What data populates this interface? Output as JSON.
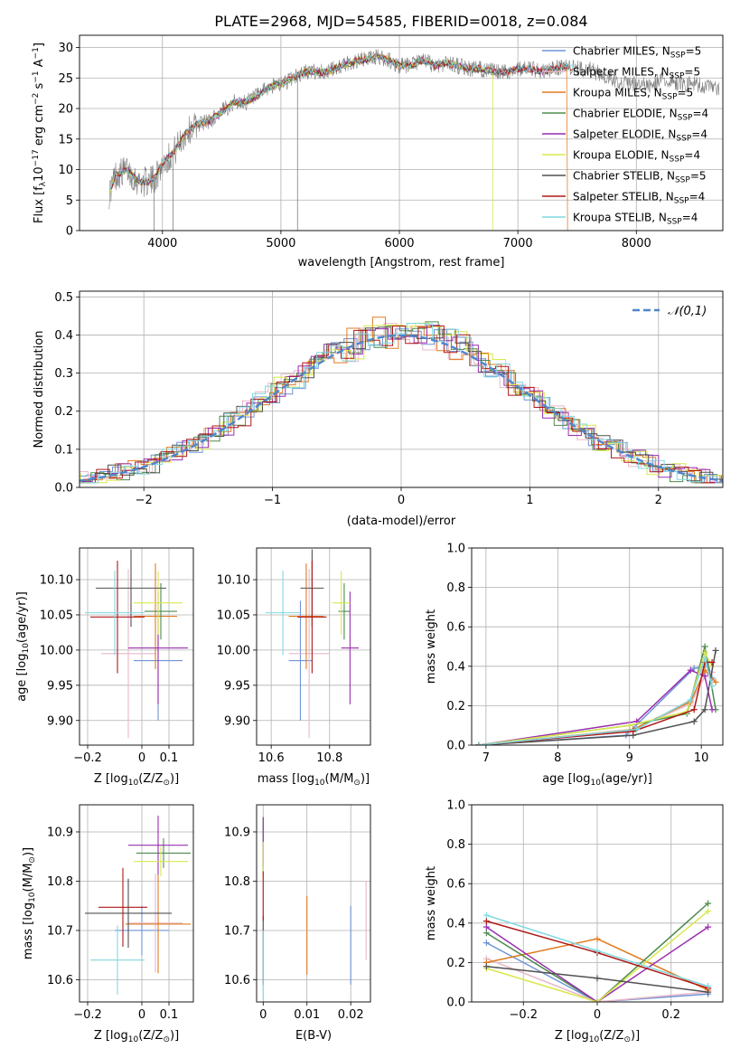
{
  "figure_title": "PLATE=2968, MJD=54585, FIBERID=0018, z=0.084",
  "legend": {
    "items": [
      {
        "base": "Chabrier MILES, N",
        "sub": "SSP",
        "tail": "=5",
        "color": "#6f94d6"
      },
      {
        "base": "Salpeter MILES, N",
        "sub": "SSP",
        "tail": "=5",
        "color": "#e8b8c8"
      },
      {
        "base": "Kroupa MILES, N",
        "sub": "SSP",
        "tail": "=5",
        "color": "#e07b20"
      },
      {
        "base": "Chabrier ELODIE, N",
        "sub": "SSP",
        "tail": "=4",
        "color": "#4e8b4e"
      },
      {
        "base": "Salpeter ELODIE, N",
        "sub": "SSP",
        "tail": "=4",
        "color": "#9a2fb0"
      },
      {
        "base": "Kroupa ELODIE, N",
        "sub": "SSP",
        "tail": "=4",
        "color": "#d9e84a"
      },
      {
        "base": "Chabrier STELIB, N",
        "sub": "SSP",
        "tail": "=5",
        "color": "#505050"
      },
      {
        "base": "Salpeter STELIB, N",
        "sub": "SSP",
        "tail": "=4",
        "color": "#b01818"
      },
      {
        "base": "Kroupa STELIB, N",
        "sub": "SSP",
        "tail": "=4",
        "color": "#80d8e0"
      }
    ]
  },
  "chart_data": [
    {
      "type": "line",
      "id": "spectrum",
      "xlabel": "wavelength [Angstrom, rest frame]",
      "ylabel_parts": [
        "Flux [f",
        "λ",
        "10",
        "−17",
        " erg cm",
        "−2",
        " s",
        "−1",
        " A",
        "−1",
        "]"
      ],
      "xlim": [
        3300,
        8730
      ],
      "ylim": [
        0,
        32
      ],
      "xticks": [
        4000,
        5000,
        6000,
        7000,
        8000
      ],
      "yticks": [
        0,
        5,
        10,
        15,
        20,
        25,
        30
      ],
      "data_color": "#808080",
      "x": [
        3550,
        3600,
        3700,
        3800,
        3900,
        3950,
        4000,
        4100,
        4200,
        4300,
        4400,
        4500,
        4600,
        4700,
        4800,
        4900,
        5000,
        5100,
        5200,
        5300,
        5400,
        5500,
        5600,
        5700,
        5800,
        5900,
        6000,
        6100,
        6200,
        6300,
        6400,
        6500,
        6600,
        6700,
        6800,
        6900,
        7000,
        7100,
        7200,
        7300,
        7400,
        7500,
        7600,
        7700,
        7800,
        7900,
        8000,
        8100,
        8200,
        8300,
        8400,
        8500,
        8600,
        8700
      ],
      "y": [
        6,
        9,
        10,
        8,
        8,
        9,
        11,
        13,
        16,
        17.5,
        18,
        19.5,
        21,
        21,
        22,
        23.5,
        24,
        25,
        26,
        26,
        26,
        27,
        27.5,
        28,
        28.5,
        28,
        27,
        27,
        28,
        27,
        27.5,
        27,
        26.5,
        26.5,
        26,
        26,
        26.5,
        26.5,
        26,
        26.5,
        27,
        26.5,
        26.5,
        25.5,
        25,
        24,
        24,
        23.5,
        24.5,
        24.5,
        24,
        24,
        23.5,
        23
      ],
      "noise": 1.4,
      "spikes": [
        {
          "x": 5140,
          "y": 0
        },
        {
          "x": 3930,
          "y": 0
        },
        {
          "x": 4090,
          "y": 0
        }
      ]
    },
    {
      "type": "bar",
      "id": "residual-hist",
      "xlabel": "(data-model)/error",
      "ylabel": "Normed distribution",
      "xlim": [
        -2.5,
        2.5
      ],
      "ylim": [
        0,
        0.515
      ],
      "xticks": [
        -2,
        -1,
        0,
        1,
        2
      ],
      "yticks": [
        0,
        0.1,
        0.2,
        0.3,
        0.4,
        0.5
      ],
      "bin_width": 0.1,
      "reference_curve": {
        "name": "𝒩(0,1)",
        "color": "#4f86cc",
        "mean": 0,
        "sigma": 1
      }
    },
    {
      "type": "scatter",
      "id": "age-vs-metallicity",
      "xlabel_parts": [
        "Z [log",
        "10",
        "(Z/Z",
        "⊙",
        ")]"
      ],
      "ylabel_parts": [
        "age  [log",
        "10",
        "(age/yr)]"
      ],
      "xlim": [
        -0.23,
        0.19
      ],
      "ylim": [
        9.865,
        10.145
      ],
      "xticks": [
        -0.2,
        0,
        0.1
      ],
      "yticks": [
        9.9,
        9.95,
        10.0,
        10.05,
        10.1
      ],
      "points": [
        {
          "x": 0.06,
          "y": 9.985,
          "xerr": 0.09,
          "yerr": 0.085
        },
        {
          "x": -0.05,
          "y": 9.995,
          "xerr": 0.1,
          "yerr": 0.12
        },
        {
          "x": 0.05,
          "y": 10.048,
          "xerr": 0.08,
          "yerr": 0.075
        },
        {
          "x": 0.07,
          "y": 10.055,
          "xerr": 0.06,
          "yerr": 0.04
        },
        {
          "x": 0.06,
          "y": 10.003,
          "xerr": 0.11,
          "yerr": 0.08
        },
        {
          "x": 0.06,
          "y": 10.067,
          "xerr": 0.09,
          "yerr": 0.045
        },
        {
          "x": -0.04,
          "y": 10.088,
          "xerr": 0.13,
          "yerr": 0.055
        },
        {
          "x": -0.09,
          "y": 10.047,
          "xerr": 0.1,
          "yerr": 0.08
        },
        {
          "x": -0.1,
          "y": 10.053,
          "xerr": 0.11,
          "yerr": 0.06
        }
      ]
    },
    {
      "type": "scatter",
      "id": "age-vs-mass",
      "xlabel_parts": [
        "mass [log",
        "10",
        "(M/M",
        "⊙",
        ")]"
      ],
      "xlim": [
        10.55,
        10.94
      ],
      "ylim": [
        9.865,
        10.145
      ],
      "xticks": [
        10.6,
        10.8
      ],
      "yticks": [
        9.9,
        9.95,
        10.0,
        10.05,
        10.1
      ],
      "points": [
        {
          "x": 10.7,
          "y": 9.985,
          "xerr": 0.04,
          "yerr": 0.085
        },
        {
          "x": 10.73,
          "y": 9.995,
          "xerr": 0.07,
          "yerr": 0.12
        },
        {
          "x": 10.72,
          "y": 10.048,
          "xerr": 0.06,
          "yerr": 0.075
        },
        {
          "x": 10.85,
          "y": 10.055,
          "xerr": 0.02,
          "yerr": 0.04
        },
        {
          "x": 10.87,
          "y": 10.003,
          "xerr": 0.03,
          "yerr": 0.08
        },
        {
          "x": 10.84,
          "y": 10.067,
          "xerr": 0.03,
          "yerr": 0.045
        },
        {
          "x": 10.74,
          "y": 10.088,
          "xerr": 0.04,
          "yerr": 0.055
        },
        {
          "x": 10.74,
          "y": 10.047,
          "xerr": 0.05,
          "yerr": 0.08
        },
        {
          "x": 10.64,
          "y": 10.053,
          "xerr": 0.06,
          "yerr": 0.06
        }
      ]
    },
    {
      "type": "line",
      "id": "mass-weight-vs-age",
      "xlabel_parts": [
        "age  [log",
        "10",
        "(age/yr)]"
      ],
      "ylabel": "mass weight",
      "xlim": [
        6.8,
        10.3
      ],
      "ylim": [
        0,
        1
      ],
      "xticks": [
        7,
        8,
        9,
        10
      ],
      "yticks": [
        0,
        0.2,
        0.4,
        0.6,
        0.8,
        1.0
      ],
      "series": [
        {
          "x": [
            6.9,
            8.95,
            9.9,
            10.1,
            10.15
          ],
          "y": [
            0.0,
            0.05,
            0.39,
            0.4,
            0.34
          ]
        },
        {
          "x": [
            6.9,
            9.0,
            9.85,
            10.05,
            10.15
          ],
          "y": [
            0.0,
            0.07,
            0.21,
            0.35,
            0.37
          ]
        },
        {
          "x": [
            6.9,
            9.05,
            9.85,
            10.05,
            10.2
          ],
          "y": [
            0.0,
            0.08,
            0.22,
            0.38,
            0.32
          ]
        },
        {
          "x": [
            6.9,
            9.0,
            9.8,
            10.05,
            10.2
          ],
          "y": [
            0.0,
            0.1,
            0.16,
            0.5,
            0.18
          ]
        },
        {
          "x": [
            6.9,
            9.1,
            9.85,
            10.05,
            10.15
          ],
          "y": [
            0.0,
            0.12,
            0.38,
            0.35,
            0.18
          ]
        },
        {
          "x": [
            6.9,
            9.0,
            9.8,
            10.05,
            10.15
          ],
          "y": [
            0.0,
            0.1,
            0.17,
            0.47,
            0.4
          ]
        },
        {
          "x": [
            6.9,
            9.05,
            9.9,
            10.05,
            10.2
          ],
          "y": [
            0.0,
            0.05,
            0.12,
            0.18,
            0.48
          ]
        },
        {
          "x": [
            6.9,
            9.05,
            9.9,
            10.05,
            10.15
          ],
          "y": [
            0.0,
            0.07,
            0.18,
            0.42,
            0.42
          ]
        },
        {
          "x": [
            6.9,
            9.1,
            9.85,
            10.05,
            10.15
          ],
          "y": [
            0.0,
            0.08,
            0.23,
            0.44,
            0.3
          ]
        }
      ]
    },
    {
      "type": "scatter",
      "id": "mass-vs-metallicity",
      "xlabel_parts": [
        "Z [log",
        "10",
        "(Z/Z",
        "⊙",
        ")]"
      ],
      "ylabel_parts": [
        "mass [log",
        "10",
        "(M/M",
        "⊙",
        ")]"
      ],
      "xlim": [
        -0.23,
        0.19
      ],
      "ylim": [
        10.555,
        10.955
      ],
      "xticks": [
        -0.2,
        0,
        0.1
      ],
      "yticks": [
        10.6,
        10.7,
        10.8,
        10.9
      ],
      "points": [
        {
          "x": 0.0,
          "y": 10.7,
          "xerr": 0.1,
          "yerr": 0.05
        },
        {
          "x": 0.05,
          "y": 10.715,
          "xerr": 0.1,
          "yerr": 0.1
        },
        {
          "x": 0.06,
          "y": 10.713,
          "xerr": 0.12,
          "yerr": 0.1
        },
        {
          "x": 0.08,
          "y": 10.857,
          "xerr": 0.1,
          "yerr": 0.03
        },
        {
          "x": 0.06,
          "y": 10.873,
          "xerr": 0.11,
          "yerr": 0.06
        },
        {
          "x": 0.07,
          "y": 10.84,
          "xerr": 0.1,
          "yerr": 0.03
        },
        {
          "x": -0.05,
          "y": 10.735,
          "xerr": 0.16,
          "yerr": 0.07
        },
        {
          "x": -0.07,
          "y": 10.747,
          "xerr": 0.09,
          "yerr": 0.08
        },
        {
          "x": -0.09,
          "y": 10.64,
          "xerr": 0.1,
          "yerr": 0.07
        }
      ]
    },
    {
      "type": "scatter",
      "id": "mass-vs-ebv",
      "xlabel": "E(B-V)",
      "xlim": [
        -0.0015,
        0.0245
      ],
      "ylim": [
        10.555,
        10.955
      ],
      "xticks": [
        0.0,
        0.01,
        0.02
      ],
      "yticks": [
        10.6,
        10.7,
        10.8,
        10.9
      ],
      "points": [
        {
          "x": 0.02,
          "y": 10.67,
          "yerr": 0.08
        },
        {
          "x": 0.0235,
          "y": 10.72,
          "yerr": 0.08
        },
        {
          "x": 0.01,
          "y": 10.69,
          "yerr": 0.08
        },
        {
          "x": 0.0,
          "y": 10.87,
          "yerr": 0.06
        },
        {
          "x": 0.0,
          "y": 10.88,
          "yerr": 0.05
        },
        {
          "x": 0.0,
          "y": 10.84,
          "yerr": 0.04
        },
        {
          "x": 0.0,
          "y": 10.66,
          "yerr": 0.07
        },
        {
          "x": 0.0,
          "y": 10.77,
          "yerr": 0.05
        },
        {
          "x": 0.0,
          "y": 10.63,
          "yerr": 0.07
        }
      ]
    },
    {
      "type": "line",
      "id": "mass-weight-vs-metallicity",
      "xlabel_parts": [
        "Z [log",
        "10",
        "(Z/Z",
        "⊙",
        ")]"
      ],
      "ylabel": "mass weight",
      "xlim": [
        -0.34,
        0.34
      ],
      "ylim": [
        0,
        1
      ],
      "xticks": [
        -0.2,
        0,
        0.2
      ],
      "yticks": [
        0,
        0.2,
        0.4,
        0.6,
        0.8,
        1.0
      ],
      "series": [
        {
          "x": [
            -0.3,
            0.0,
            0.3
          ],
          "y": [
            0.3,
            0.0,
            0.04
          ]
        },
        {
          "x": [
            -0.3,
            0.0,
            0.3
          ],
          "y": [
            0.22,
            0.0,
            0.05
          ]
        },
        {
          "x": [
            -0.3,
            0.0,
            0.3
          ],
          "y": [
            0.2,
            0.32,
            0.06
          ]
        },
        {
          "x": [
            -0.3,
            0.0,
            0.3
          ],
          "y": [
            0.35,
            0.0,
            0.5
          ]
        },
        {
          "x": [
            -0.3,
            0.0,
            0.3
          ],
          "y": [
            0.38,
            0.0,
            0.38
          ]
        },
        {
          "x": [
            -0.3,
            0.0,
            0.3
          ],
          "y": [
            0.17,
            0.0,
            0.46
          ]
        },
        {
          "x": [
            -0.3,
            0.0,
            0.3
          ],
          "y": [
            0.18,
            0.12,
            0.05
          ]
        },
        {
          "x": [
            -0.3,
            0.0,
            0.3
          ],
          "y": [
            0.41,
            0.25,
            0.07
          ]
        },
        {
          "x": [
            -0.3,
            0.0,
            0.3
          ],
          "y": [
            0.44,
            0.26,
            0.08
          ]
        }
      ]
    }
  ]
}
